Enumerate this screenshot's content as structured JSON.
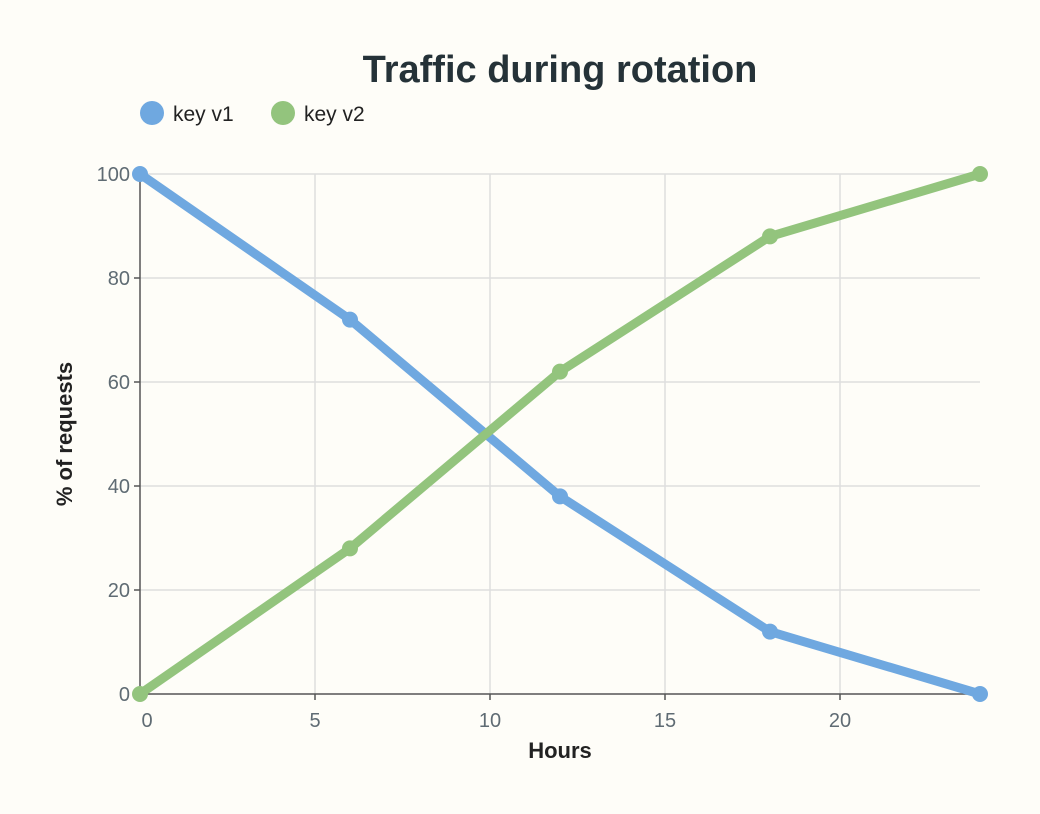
{
  "chart_data": {
    "type": "line",
    "title": "Traffic during rotation",
    "xlabel": "Hours",
    "ylabel": "% of requests",
    "xlim": [
      0,
      24
    ],
    "ylim": [
      0,
      100
    ],
    "x_ticks": [
      0,
      5,
      10,
      15,
      20
    ],
    "y_ticks": [
      0,
      20,
      40,
      60,
      80,
      100
    ],
    "grid": true,
    "legend_position": "top-left",
    "x": [
      0,
      6,
      12,
      18,
      24
    ],
    "series": [
      {
        "name": "key v1",
        "color": "#6fa8e0",
        "values": [
          100,
          72,
          38,
          12,
          0
        ]
      },
      {
        "name": "key v2",
        "color": "#93c47d",
        "values": [
          0,
          28,
          62,
          88,
          100
        ]
      }
    ]
  }
}
